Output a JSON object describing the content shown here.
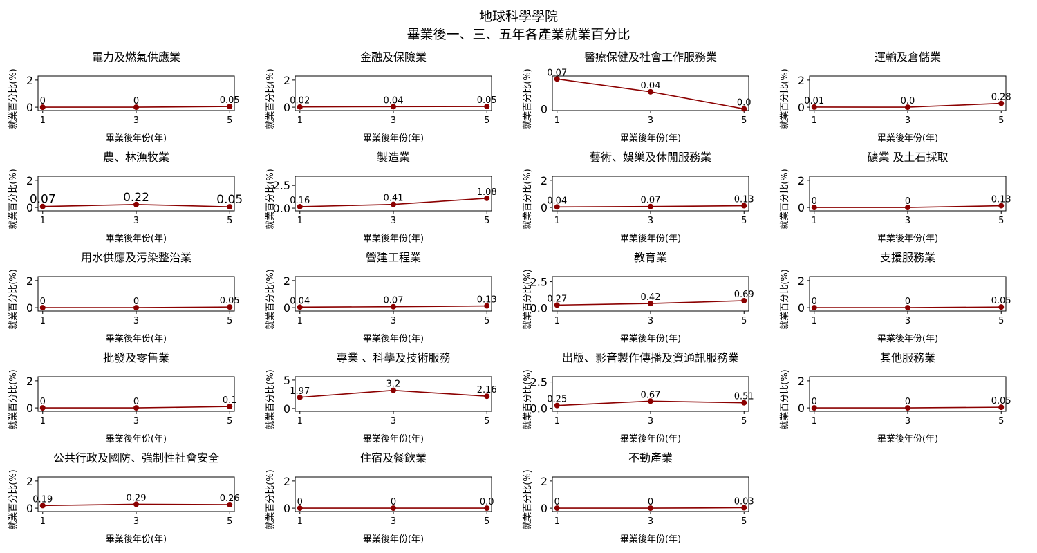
{
  "figure": {
    "title_line1": "地球科學學院",
    "title_line2": "畢業後一、三、五年各產業就業百分比"
  },
  "colors": {
    "line": "#8b0000",
    "marker": "#8b0000",
    "axes": "#000000"
  },
  "chart_data": [
    {
      "type": "line",
      "title": "電力及燃氣供應業",
      "x": [
        1,
        3,
        5
      ],
      "values": [
        0,
        0,
        0.05
      ],
      "labels": [
        "0",
        "0",
        "0.05"
      ],
      "xlabel": "畢業後年份(年)",
      "ylabel": "就業百分比(%)",
      "yticks": [
        0,
        2
      ],
      "ylim": [
        -0.25,
        2.3
      ]
    },
    {
      "type": "line",
      "title": "金融及保險業",
      "x": [
        1,
        3,
        5
      ],
      "values": [
        0.02,
        0.04,
        0.05
      ],
      "labels": [
        "0.02",
        "0.04",
        "0.05"
      ],
      "xlabel": "畢業後年份(年)",
      "ylabel": "就業百分比(%)",
      "yticks": [
        0,
        2
      ],
      "ylim": [
        -0.25,
        2.3
      ]
    },
    {
      "type": "line",
      "title": "醫療保健及社會工作服務業",
      "x": [
        1,
        3,
        5
      ],
      "values": [
        0.07,
        0.04,
        0.0
      ],
      "labels": [
        "0.07",
        "0.04",
        "0.0"
      ],
      "xlabel": "畢業後年份(年)",
      "ylabel": "就業百分比(%)",
      "yticks": [
        0
      ],
      "ylim": [
        -0.004,
        0.077
      ]
    },
    {
      "type": "line",
      "title": "運輸及倉儲業",
      "x": [
        1,
        3,
        5
      ],
      "values": [
        0.01,
        0.0,
        0.28
      ],
      "labels": [
        "0.01",
        "0.0",
        "0.28"
      ],
      "xlabel": "畢業後年份(年)",
      "ylabel": "就業百分比(%)",
      "yticks": [
        0,
        2
      ],
      "ylim": [
        -0.25,
        2.3
      ]
    },
    {
      "type": "line",
      "title": "農、林漁牧業",
      "x": [
        1,
        3,
        5
      ],
      "values": [
        0.07,
        0.22,
        0.05
      ],
      "labels": [
        "0.07",
        "0.22",
        "0.05"
      ],
      "big_labels": true,
      "xlabel": "畢業後年份(年)",
      "ylabel": "就業百分比(%)",
      "yticks": [
        0,
        2
      ],
      "ylim": [
        -0.25,
        2.3
      ]
    },
    {
      "type": "line",
      "title": "製造業",
      "x": [
        1,
        3,
        5
      ],
      "values": [
        0.16,
        0.41,
        1.08
      ],
      "labels": [
        "0.16",
        "0.41",
        "1.08"
      ],
      "xlabel": "畢業後年份(年)",
      "ylabel": "就業百分比(%)",
      "yticks": [
        0.0,
        2.5
      ],
      "ytick_labels": [
        "0.0",
        "2.5"
      ],
      "ylim": [
        -0.3,
        3.5
      ]
    },
    {
      "type": "line",
      "title": "藝術、娛樂及休閒服務業",
      "x": [
        1,
        3,
        5
      ],
      "values": [
        0.04,
        0.07,
        0.13
      ],
      "labels": [
        "0.04",
        "0.07",
        "0.13"
      ],
      "xlabel": "畢業後年份(年)",
      "ylabel": "就業百分比(%)",
      "yticks": [
        0,
        2
      ],
      "ylim": [
        -0.25,
        2.3
      ]
    },
    {
      "type": "line",
      "title": "礦業 及土石採取",
      "x": [
        1,
        3,
        5
      ],
      "values": [
        0,
        0,
        0.13
      ],
      "labels": [
        "0",
        "0",
        "0.13"
      ],
      "xlabel": "畢業後年份(年)",
      "ylabel": "就業百分比(%)",
      "yticks": [
        0,
        2
      ],
      "ylim": [
        -0.25,
        2.3
      ]
    },
    {
      "type": "line",
      "title": "用水供應及污染整治業",
      "x": [
        1,
        3,
        5
      ],
      "values": [
        0,
        0,
        0.05
      ],
      "labels": [
        "0",
        "0",
        "0.05"
      ],
      "xlabel": "畢業後年份(年)",
      "ylabel": "就業百分比(%)",
      "yticks": [
        0,
        2
      ],
      "ylim": [
        -0.25,
        2.3
      ]
    },
    {
      "type": "line",
      "title": "營建工程業",
      "x": [
        1,
        3,
        5
      ],
      "values": [
        0.04,
        0.07,
        0.13
      ],
      "labels": [
        "0.04",
        "0.07",
        "0.13"
      ],
      "xlabel": "畢業後年份(年)",
      "ylabel": "就業百分比(%)",
      "yticks": [
        0,
        2
      ],
      "ylim": [
        -0.25,
        2.3
      ]
    },
    {
      "type": "line",
      "title": "教育業",
      "x": [
        1,
        3,
        5
      ],
      "values": [
        0.27,
        0.42,
        0.69
      ],
      "labels": [
        "0.27",
        "0.42",
        "0.69"
      ],
      "xlabel": "畢業後年份(年)",
      "ylabel": "就業百分比(%)",
      "yticks": [
        0.0,
        2.5
      ],
      "ytick_labels": [
        "0.0",
        "2.5"
      ],
      "ylim": [
        -0.3,
        3.0
      ]
    },
    {
      "type": "line",
      "title": "支援服務業",
      "x": [
        1,
        3,
        5
      ],
      "values": [
        0,
        0,
        0.05
      ],
      "labels": [
        "0",
        "0",
        "0.05"
      ],
      "xlabel": "畢業後年份(年)",
      "ylabel": "就業百分比(%)",
      "yticks": [
        0,
        2
      ],
      "ylim": [
        -0.25,
        2.3
      ]
    },
    {
      "type": "line",
      "title": "批發及零售業",
      "x": [
        1,
        3,
        5
      ],
      "values": [
        0,
        0,
        0.1
      ],
      "labels": [
        "0",
        "0",
        "0.1"
      ],
      "xlabel": "畢業後年份(年)",
      "ylabel": "就業百分比(%)",
      "yticks": [
        0,
        2
      ],
      "ylim": [
        -0.25,
        2.3
      ]
    },
    {
      "type": "line",
      "title": "專業 、科學及技術服務",
      "x": [
        1,
        3,
        5
      ],
      "values": [
        1.97,
        3.2,
        2.16
      ],
      "labels": [
        "1.97",
        "3.2",
        "2.16"
      ],
      "xlabel": "畢業後年份(年)",
      "ylabel": "就業百分比(%)",
      "yticks": [
        0,
        5
      ],
      "ylim": [
        -0.5,
        5.6
      ]
    },
    {
      "type": "line",
      "title": "出版、影音製作傳播及資通訊服務業",
      "x": [
        1,
        3,
        5
      ],
      "values": [
        0.25,
        0.67,
        0.51
      ],
      "labels": [
        "0.25",
        "0.67",
        "0.51"
      ],
      "xlabel": "畢業後年份(年)",
      "ylabel": "就業百分比(%)",
      "yticks": [
        0.0,
        2.5
      ],
      "ytick_labels": [
        "0.0",
        "2.5"
      ],
      "ylim": [
        -0.3,
        3.0
      ]
    },
    {
      "type": "line",
      "title": "其他服務業",
      "x": [
        1,
        3,
        5
      ],
      "values": [
        0,
        0,
        0.05
      ],
      "labels": [
        "0",
        "0",
        "0.05"
      ],
      "xlabel": "畢業後年份(年)",
      "ylabel": "就業百分比(%)",
      "yticks": [
        0,
        2
      ],
      "ylim": [
        -0.25,
        2.3
      ]
    },
    {
      "type": "line",
      "title": "公共行政及國防、強制性社會安全",
      "x": [
        1,
        3,
        5
      ],
      "values": [
        0.19,
        0.29,
        0.26
      ],
      "labels": [
        "0.19",
        "0.29",
        "0.26"
      ],
      "xlabel": "畢業後年份(年)",
      "ylabel": "就業百分比(%)",
      "yticks": [
        0,
        2
      ],
      "ylim": [
        -0.25,
        2.3
      ]
    },
    {
      "type": "line",
      "title": "住宿及餐飲業",
      "x": [
        1,
        3,
        5
      ],
      "values": [
        0,
        0,
        0.0
      ],
      "labels": [
        "0",
        "0",
        "0.0"
      ],
      "xlabel": "畢業後年份(年)",
      "ylabel": "就業百分比(%)",
      "yticks": [
        0,
        2
      ],
      "ylim": [
        -0.25,
        2.3
      ]
    },
    {
      "type": "line",
      "title": "不動產業",
      "x": [
        1,
        3,
        5
      ],
      "values": [
        0,
        0,
        0.03
      ],
      "labels": [
        "0",
        "0",
        "0.03"
      ],
      "xlabel": "畢業後年份(年)",
      "ylabel": "就業百分比(%)",
      "yticks": [
        0,
        2
      ],
      "ylim": [
        -0.25,
        2.3
      ]
    }
  ]
}
